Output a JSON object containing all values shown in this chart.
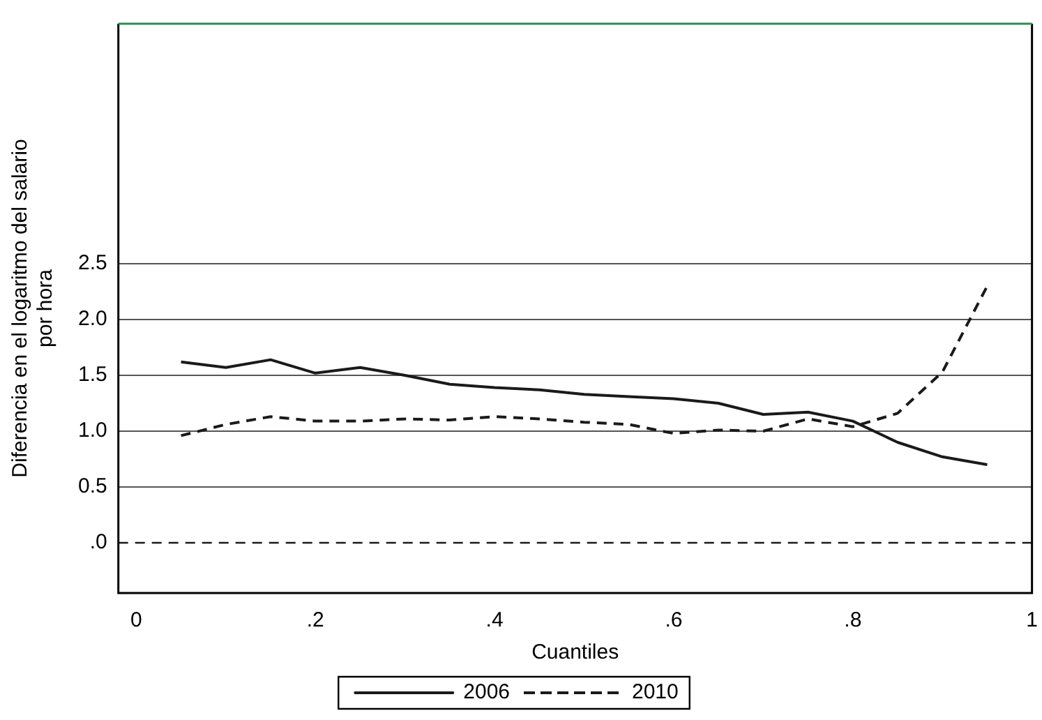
{
  "chart_data": {
    "type": "line",
    "xlabel": "Cuantiles",
    "ylabel": "Diferencia en el logaritmo del salario por hora",
    "x": [
      0.05,
      0.1,
      0.15,
      0.2,
      0.25,
      0.3,
      0.35,
      0.4,
      0.45,
      0.5,
      0.55,
      0.6,
      0.65,
      0.7,
      0.75,
      0.8,
      0.85,
      0.9,
      0.95
    ],
    "series": [
      {
        "name": "2006",
        "color": "#1a1a1a",
        "line_style": "solid",
        "values": [
          1.62,
          1.57,
          1.64,
          1.52,
          1.57,
          1.5,
          1.42,
          1.39,
          1.37,
          1.33,
          1.31,
          1.29,
          1.25,
          1.15,
          1.17,
          1.09,
          0.9,
          0.77,
          0.7
        ]
      },
      {
        "name": "2010",
        "color": "#1a1a1a",
        "line_style": "dashed",
        "values": [
          0.96,
          1.06,
          1.13,
          1.09,
          1.09,
          1.11,
          1.1,
          1.13,
          1.11,
          1.08,
          1.06,
          0.98,
          1.01,
          1.0,
          1.11,
          1.04,
          1.16,
          1.53,
          2.3
        ]
      }
    ],
    "xlim": [
      -0.02,
      1.0
    ],
    "ylim": [
      -0.45,
      4.65
    ],
    "xticks": [
      {
        "value": 0,
        "label": "0"
      },
      {
        "value": 0.2,
        "label": ".2"
      },
      {
        "value": 0.4,
        "label": ".4"
      },
      {
        "value": 0.6,
        "label": ".6"
      },
      {
        "value": 0.8,
        "label": ".8"
      },
      1
    ],
    "yticks": [
      {
        "value": 0,
        "label": ".0"
      },
      0.5,
      {
        "value": 1,
        "label": "1.0"
      },
      1.5,
      {
        "value": 2,
        "label": "2.0"
      },
      2.5
    ],
    "ref_lines": [
      {
        "axis": "y",
        "value": 0,
        "color": "#1a1a1a",
        "line_style": "dashed"
      }
    ],
    "grid": "y",
    "legend": "bottom",
    "marker": "none"
  }
}
